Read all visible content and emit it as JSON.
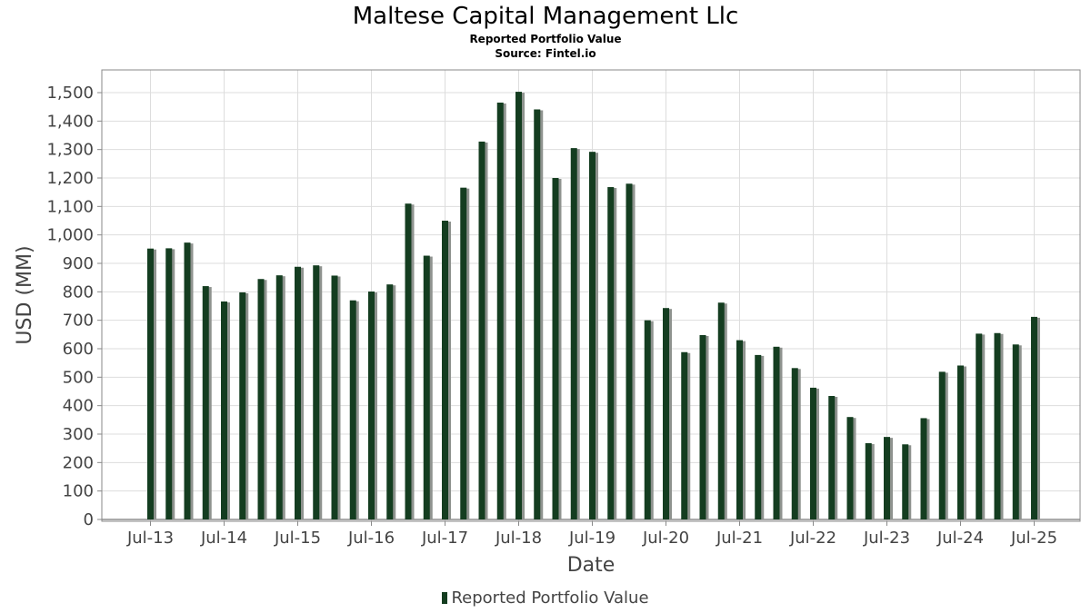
{
  "title": "Maltese Capital Management Llc",
  "subtitle": "Reported Portfolio Value",
  "source": "Source: Fintel.io",
  "colors": {
    "bar": "#143d20",
    "shadow": "#8f938f",
    "grid": "#dddddd",
    "frame": "#888888"
  },
  "chart_data": {
    "type": "bar",
    "xlabel": "Date",
    "ylabel": "USD (MM)",
    "ylim": [
      0,
      1570
    ],
    "yticks": [
      0,
      100,
      200,
      300,
      400,
      500,
      600,
      700,
      800,
      900,
      1000,
      1100,
      1200,
      1300,
      1400,
      1500
    ],
    "ytick_labels": [
      "0",
      "100",
      "200",
      "300",
      "400",
      "500",
      "600",
      "700",
      "800",
      "900",
      "1,000",
      "1,100",
      "1,200",
      "1,300",
      "1,400",
      "1,500"
    ],
    "xtick_labels": [
      "Jul-13",
      "Jul-14",
      "Jul-15",
      "Jul-16",
      "Jul-17",
      "Jul-18",
      "Jul-19",
      "Jul-20",
      "Jul-21",
      "Jul-22",
      "Jul-23",
      "Jul-24",
      "Jul-25"
    ],
    "grid": true,
    "legend_position": "bottom",
    "series": [
      {
        "name": "Reported Portfolio Value",
        "values": [
          952,
          953,
          973,
          820,
          766,
          798,
          845,
          858,
          888,
          893,
          857,
          770,
          801,
          826,
          1110,
          927,
          1050,
          1166,
          1328,
          1465,
          1503,
          1441,
          1200,
          1305,
          1292,
          1168,
          1180,
          700,
          743,
          588,
          648,
          762,
          630,
          578,
          607,
          532,
          463,
          434,
          360,
          268,
          290,
          264,
          356,
          519,
          541,
          653,
          655,
          615,
          712
        ]
      }
    ]
  }
}
